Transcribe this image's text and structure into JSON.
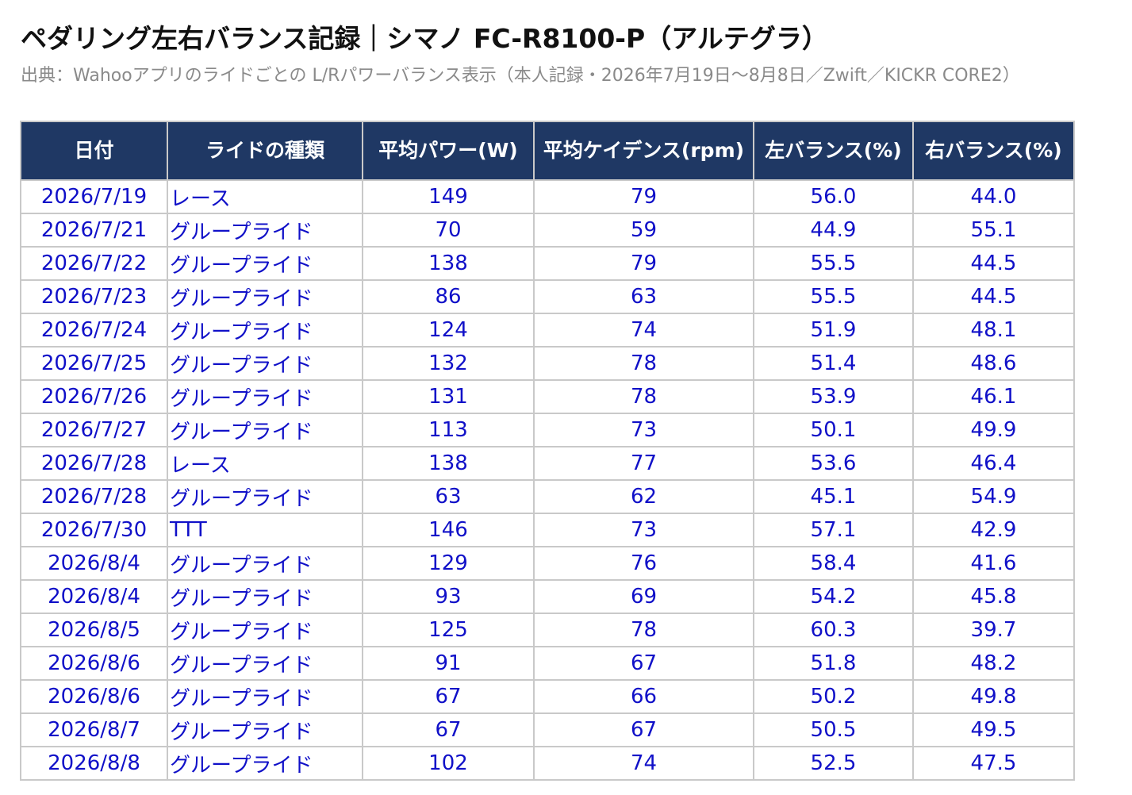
{
  "title": "ペダリング左右バランス記録｜シマノ FC-R8100-P（アルテグラ）",
  "source": "出典：Wahooアプリのライドごとの L/Rパワーバランス表示（本人記録・2026年7月19日〜8月8日／Zwift／KICKR CORE2）",
  "table": {
    "headers": {
      "date": "日付",
      "type": "ライドの種類",
      "power": "平均パワー(W)",
      "cadence": "平均ケイデンス(rpm)",
      "left": "左バランス(%)",
      "right": "右バランス(%)"
    },
    "rows": [
      {
        "date": "2026/7/19",
        "type": "レース",
        "power": "149",
        "cadence": "79",
        "left": "56.0",
        "right": "44.0"
      },
      {
        "date": "2026/7/21",
        "type": "グループライド",
        "power": "70",
        "cadence": "59",
        "left": "44.9",
        "right": "55.1"
      },
      {
        "date": "2026/7/22",
        "type": "グループライド",
        "power": "138",
        "cadence": "79",
        "left": "55.5",
        "right": "44.5"
      },
      {
        "date": "2026/7/23",
        "type": "グループライド",
        "power": "86",
        "cadence": "63",
        "left": "55.5",
        "right": "44.5"
      },
      {
        "date": "2026/7/24",
        "type": "グループライド",
        "power": "124",
        "cadence": "74",
        "left": "51.9",
        "right": "48.1"
      },
      {
        "date": "2026/7/25",
        "type": "グループライド",
        "power": "132",
        "cadence": "78",
        "left": "51.4",
        "right": "48.6"
      },
      {
        "date": "2026/7/26",
        "type": "グループライド",
        "power": "131",
        "cadence": "78",
        "left": "53.9",
        "right": "46.1"
      },
      {
        "date": "2026/7/27",
        "type": "グループライド",
        "power": "113",
        "cadence": "73",
        "left": "50.1",
        "right": "49.9"
      },
      {
        "date": "2026/7/28",
        "type": "レース",
        "power": "138",
        "cadence": "77",
        "left": "53.6",
        "right": "46.4"
      },
      {
        "date": "2026/7/28",
        "type": "グループライド",
        "power": "63",
        "cadence": "62",
        "left": "45.1",
        "right": "54.9"
      },
      {
        "date": "2026/7/30",
        "type": "TTT",
        "power": "146",
        "cadence": "73",
        "left": "57.1",
        "right": "42.9"
      },
      {
        "date": "2026/8/4",
        "type": "グループライド",
        "power": "129",
        "cadence": "76",
        "left": "58.4",
        "right": "41.6"
      },
      {
        "date": "2026/8/4",
        "type": "グループライド",
        "power": "93",
        "cadence": "69",
        "left": "54.2",
        "right": "45.8"
      },
      {
        "date": "2026/8/5",
        "type": "グループライド",
        "power": "125",
        "cadence": "78",
        "left": "60.3",
        "right": "39.7"
      },
      {
        "date": "2026/8/6",
        "type": "グループライド",
        "power": "91",
        "cadence": "67",
        "left": "51.8",
        "right": "48.2"
      },
      {
        "date": "2026/8/6",
        "type": "グループライド",
        "power": "67",
        "cadence": "66",
        "left": "50.2",
        "right": "49.8"
      },
      {
        "date": "2026/8/7",
        "type": "グループライド",
        "power": "67",
        "cadence": "67",
        "left": "50.5",
        "right": "49.5"
      },
      {
        "date": "2026/8/8",
        "type": "グループライド",
        "power": "102",
        "cadence": "74",
        "left": "52.5",
        "right": "47.5"
      }
    ]
  },
  "colors": {
    "header_bg": "#1f3864",
    "header_text": "#ffffff",
    "cell_text": "#1010c8",
    "grid": "#c9c9c9",
    "source_text": "#8a8a8a"
  }
}
